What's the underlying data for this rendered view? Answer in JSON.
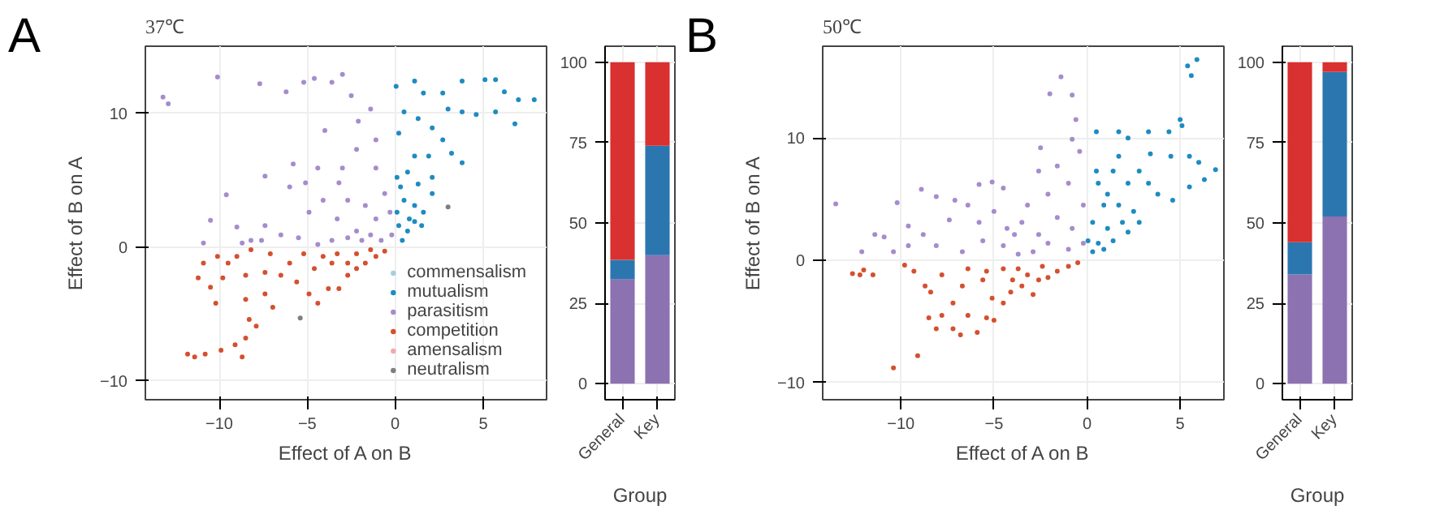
{
  "chart_data": [
    {
      "type": "scatter",
      "title": "37℃",
      "xlabel": "Effect of A on B",
      "ylabel": "Effect of B on A",
      "annotations": [
        "A"
      ],
      "xlim": [
        -14.2,
        8.6
      ],
      "ylim": [
        -11.4,
        15
      ],
      "xticks": [
        -10,
        -5,
        0,
        5
      ],
      "yticks": [
        -10,
        0,
        10
      ],
      "grid": true,
      "legend": "bottom right",
      "marker": "circle",
      "series": [
        {
          "name": "commensalism",
          "color": "#a6cee3"
        },
        {
          "name": "mutualism",
          "color": "#1f8bc0",
          "x": [
            0.05,
            1.1,
            1.6,
            2.7,
            3.8,
            5.1,
            5.7,
            6.2,
            7.0,
            7.9,
            6.8,
            5.7,
            4.6,
            3.8,
            3.0,
            2.1,
            1.3,
            0.5,
            0.2,
            1.1,
            2.7,
            3.2,
            3.8,
            1.9,
            0.1,
            0.7,
            1.3,
            2.1,
            2.1,
            1.6,
            1.1,
            0.5,
            0.1,
            0.2,
            0.7,
            1.1,
            1.5,
            0.4,
            0.8,
            0.3
          ],
          "values": [
            12.0,
            12.4,
            11.5,
            11.5,
            12.4,
            12.5,
            12.5,
            11.6,
            11.0,
            11.0,
            9.2,
            10.1,
            9.9,
            10.1,
            10.3,
            8.9,
            9.6,
            10.1,
            8.5,
            6.8,
            8.0,
            7.0,
            6.3,
            6.8,
            5.2,
            5.6,
            4.7,
            5.2,
            4.0,
            2.6,
            3.1,
            3.5,
            2.6,
            1.6,
            1.2,
            1.9,
            1.6,
            0.5,
            2.1,
            4.5
          ]
        },
        {
          "name": "parasitism",
          "color": "#a58ccd",
          "x": [
            -13.2,
            -12.9,
            -10.1,
            -7.7,
            -6.2,
            -5.2,
            -4.6,
            -3.6,
            -3.0,
            -2.5,
            -2.1,
            -1.4,
            -1.1,
            -2.2,
            -4.4,
            -5.8,
            -7.4,
            -5.1,
            -3.2,
            -9.6,
            -10.5,
            -10.9,
            -9.0,
            -8.2,
            -7.4,
            -6.0,
            -4.9,
            -4.1,
            -3.3,
            -2.7,
            -2.2,
            -1.7,
            -1.1,
            -0.6,
            -0.3,
            -0.2,
            -0.8,
            -1.4,
            -1.9,
            -2.7,
            -3.6,
            -4.4,
            -5.5,
            -6.5,
            -7.6,
            -8.7,
            -4.0,
            -3.0,
            -1.1
          ],
          "values": [
            11.2,
            10.7,
            12.7,
            12.2,
            11.6,
            12.3,
            12.6,
            12.3,
            12.9,
            11.3,
            9.4,
            10.3,
            8.0,
            7.3,
            5.9,
            6.2,
            5.3,
            4.8,
            4.8,
            3.9,
            2.0,
            0.3,
            1.5,
            0.5,
            1.6,
            4.5,
            2.6,
            3.5,
            2.1,
            3.5,
            1.2,
            3.1,
            2.1,
            4.0,
            2.6,
            0.9,
            0.5,
            0.9,
            0.5,
            0.7,
            0.5,
            0.2,
            0.7,
            0.9,
            0.5,
            0.3,
            8.7,
            5.9,
            5.9
          ]
        },
        {
          "name": "competition",
          "color": "#d4502f",
          "x": [
            -11.8,
            -11.4,
            -10.8,
            -9.9,
            -9.1,
            -8.7,
            -8.5,
            -7.9,
            -8.3,
            -11.2,
            -10.5,
            -10.2,
            -9.8,
            -10.1,
            -9.0,
            -8.5,
            -8.5,
            -7.4,
            -6.96,
            -6.5,
            -6.0,
            -5.6,
            -4.9,
            -4.4,
            -4.6,
            -3.8,
            -3.2,
            -2.7,
            -2.2,
            -1.7,
            -1.1,
            -0.6,
            -3.6,
            -4.1,
            -5.2,
            -7.1,
            -8.2,
            -7.4,
            -3.3,
            -2.2,
            -1.4,
            -2.7,
            -9.5,
            -10.9
          ],
          "values": [
            -8.0,
            -8.2,
            -8.0,
            -7.7,
            -7.3,
            -8.2,
            -6.8,
            -5.9,
            -5.4,
            -2.3,
            -3.0,
            -4.2,
            -2.3,
            -0.7,
            -0.7,
            -2.1,
            -3.9,
            -3.5,
            -4.5,
            -2.1,
            -1.2,
            -2.6,
            -3.5,
            -4.2,
            -1.6,
            -3.1,
            -3.1,
            -2.1,
            -1.6,
            -1.2,
            -0.7,
            -0.3,
            -1.2,
            -0.7,
            -0.5,
            -0.5,
            -0.2,
            -1.9,
            -0.5,
            -0.5,
            -0.2,
            -1.2,
            -1.2,
            -1.2
          ]
        },
        {
          "name": "amensalism",
          "color": "#f4a9a8"
        },
        {
          "name": "neutralism",
          "color": "#7f7f7f",
          "x": [
            -5.4,
            3.0
          ],
          "values": [
            -5.3,
            3.0
          ]
        }
      ]
    },
    {
      "type": "bar",
      "stacked": true,
      "xlabel": "Group",
      "categories": [
        "General",
        "Key"
      ],
      "ylim": [
        -5,
        105
      ],
      "yticks": [
        0,
        25,
        50,
        75,
        100
      ],
      "grid": true,
      "series": [
        {
          "color": "#8c72b0",
          "values": [
            32.5,
            40
          ]
        },
        {
          "color": "#2c76b0",
          "values": [
            6,
            34
          ]
        },
        {
          "color": "#d93030",
          "values": [
            61.5,
            26
          ]
        }
      ]
    },
    {
      "type": "scatter",
      "title": "50℃",
      "xlabel": "Effect of A on B",
      "ylabel": "Effect of B on A",
      "annotations": [
        "B"
      ],
      "xlim": [
        -14.2,
        7.35
      ],
      "ylim": [
        -11.4,
        17.5
      ],
      "xticks": [
        -10,
        -5,
        0,
        5
      ],
      "yticks": [
        -10,
        0,
        10
      ],
      "grid": true,
      "marker": "circle",
      "series": [
        {
          "color": "#1f8bc0",
          "x": [
            0.05,
            0.3,
            0.9,
            0.6,
            0.5,
            0.5,
            1.7,
            2.2,
            3.3,
            4.4,
            5.0,
            5.1,
            5.4,
            5.6,
            5.9,
            6.9,
            6.3,
            5.5,
            4.6,
            3.8,
            3.3,
            2.8,
            3.4,
            4.5,
            1.7,
            1.4,
            2.2,
            1.1,
            1.7,
            2.5,
            1.9,
            1.1,
            0.6,
            1.4,
            2.2,
            2.8,
            0.3,
            0.9,
            5.5,
            6.0
          ],
          "values": [
            1.6,
            3.1,
            4.5,
            6.3,
            7.3,
            10.5,
            10.5,
            10.0,
            10.5,
            10.5,
            11.5,
            11.0,
            15.9,
            15.1,
            16.4,
            7.4,
            6.6,
            6.0,
            4.9,
            5.4,
            6.3,
            7.3,
            8.7,
            8.5,
            8.5,
            7.3,
            6.3,
            5.4,
            4.5,
            4.0,
            3.1,
            2.6,
            1.4,
            1.6,
            2.3,
            3.1,
            0.7,
            0.9,
            8.5,
            8.0
          ]
        },
        {
          "color": "#a58ccd",
          "x": [
            -13.5,
            -11.4,
            -12.1,
            -10.9,
            -10.4,
            -10.2,
            -9.6,
            -8.9,
            -8.1,
            -8.8,
            -9.6,
            -7.4,
            -7.1,
            -6.4,
            -5.8,
            -5.1,
            -4.5,
            -5.0,
            -4.3,
            -3.5,
            -3.2,
            -2.6,
            -2.5,
            -2.0,
            -1.4,
            -0.8,
            -0.6,
            -0.8,
            -0.4,
            -1.6,
            -1.0,
            -2.1,
            -1.6,
            -0.8,
            -0.2,
            -1.0,
            -2.1,
            -2.9,
            -3.7,
            -4.5,
            -5.6,
            -6.7,
            -8.1,
            -3.9,
            -2.6,
            -0.2,
            -5.8
          ],
          "values": [
            4.6,
            2.1,
            0.7,
            1.9,
            0.7,
            4.7,
            2.8,
            5.8,
            5.2,
            2.1,
            1.2,
            3.3,
            4.9,
            4.5,
            6.2,
            6.4,
            5.9,
            4.0,
            2.6,
            3.1,
            4.5,
            7.3,
            9.2,
            13.6,
            15.0,
            13.5,
            11.5,
            9.9,
            8.9,
            7.7,
            6.3,
            5.4,
            3.5,
            2.6,
            1.4,
            0.9,
            1.4,
            0.7,
            0.5,
            1.2,
            1.6,
            0.7,
            1.2,
            2.1,
            2.1,
            4.5,
            3.1
          ]
        },
        {
          "color": "#d4502f",
          "x": [
            -12.6,
            -12.2,
            -11.5,
            -12.0,
            -10.4,
            -9.1,
            -9.8,
            -9.3,
            -8.7,
            -8.5,
            -8.1,
            -7.8,
            -7.2,
            -6.8,
            -6.4,
            -5.9,
            -5.4,
            -5.0,
            -7.2,
            -6.7,
            -6.4,
            -5.6,
            -5.1,
            -4.5,
            -4.1,
            -3.5,
            -2.9,
            -2.6,
            -2.1,
            -1.6,
            -1.0,
            -0.5,
            -3.7,
            -4.5,
            -5.4,
            -7.8,
            -3.2,
            -2.4,
            -4.0,
            -8.4
          ],
          "values": [
            -1.1,
            -1.2,
            -1.2,
            -0.8,
            -8.8,
            -7.8,
            -0.4,
            -0.9,
            -2.1,
            -4.7,
            -5.6,
            -4.5,
            -5.6,
            -6.1,
            -4.5,
            -5.9,
            -4.7,
            -4.9,
            -3.5,
            -2.1,
            -0.7,
            -1.6,
            -3.1,
            -3.5,
            -2.6,
            -2.1,
            -2.8,
            -1.6,
            -1.4,
            -0.9,
            -0.5,
            -0.2,
            -0.7,
            -0.7,
            -0.9,
            -1.2,
            -1.2,
            -0.5,
            -1.6,
            -2.6
          ]
        }
      ]
    },
    {
      "type": "bar",
      "stacked": true,
      "xlabel": "Group",
      "categories": [
        "General",
        "Key"
      ],
      "ylim": [
        -5,
        105
      ],
      "yticks": [
        0,
        25,
        50,
        75,
        100
      ],
      "grid": true,
      "series": [
        {
          "color": "#8c72b0",
          "values": [
            34,
            52
          ]
        },
        {
          "color": "#2c76b0",
          "values": [
            10,
            45
          ]
        },
        {
          "color": "#d93030",
          "values": [
            56,
            3
          ]
        }
      ]
    }
  ]
}
